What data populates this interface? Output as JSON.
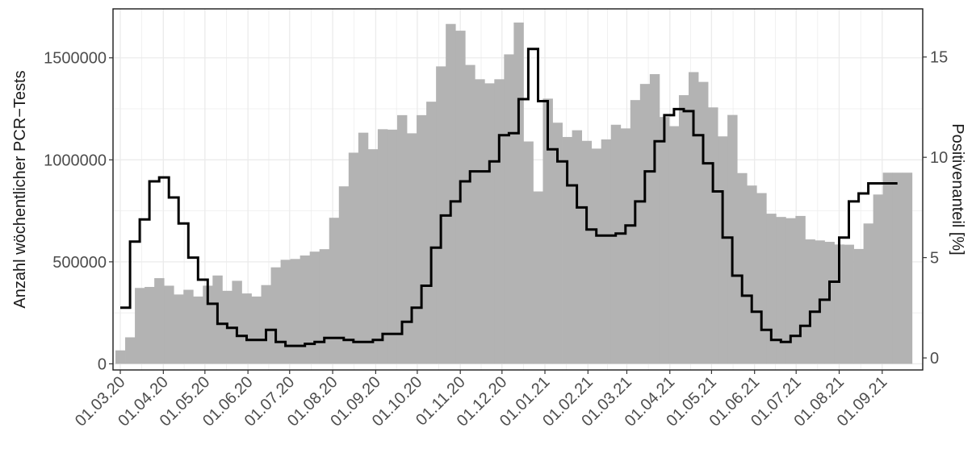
{
  "chart_data": {
    "type": "bar+line",
    "title": "",
    "ylabel": "Anzahl wöchentlicher PCR−Tests",
    "y2label": "Positivenanteil [%]",
    "ylim": [
      -30000,
      1740000
    ],
    "y2lim": [
      -0.6,
      17.4
    ],
    "x_range_weeks": [
      -0.75,
      82.6
    ],
    "grid": true,
    "colors": {
      "bars": "#b3b3b3",
      "line": "#000000",
      "grid": "#ebebeb",
      "panel_border": "#1a1a1a"
    },
    "x_tick_labels": [
      "01.03.20",
      "01.04.20",
      "01.05.20",
      "01.06.20",
      "01.07.20",
      "01.08.20",
      "01.09.20",
      "01.10.20",
      "01.11.20",
      "01.12.20",
      "01.01.21",
      "01.02.21",
      "01.03.21",
      "01.04.21",
      "01.05.21",
      "01.06.21",
      "01.07.21",
      "01.08.21",
      "01.09.21"
    ],
    "x_tick_weeks": [
      0,
      4.43,
      8.71,
      13.14,
      17.43,
      21.86,
      26.29,
      30.57,
      35.0,
      39.29,
      43.71,
      48.14,
      52.14,
      56.57,
      60.86,
      65.29,
      69.57,
      74.0,
      78.43
    ],
    "y_ticks": [
      0,
      500000,
      1000000,
      1500000
    ],
    "y_tick_labels": [
      "0",
      "500000",
      "1000000",
      "1500000"
    ],
    "y2_ticks": [
      0,
      5,
      10,
      15
    ],
    "y2_tick_labels": [
      "0",
      "5",
      "10",
      "15"
    ],
    "series": [
      {
        "name": "Anzahl wöchentlicher PCR−Tests",
        "kind": "bar",
        "values": [
          66000,
          130000,
          372000,
          377000,
          420000,
          383000,
          340000,
          363000,
          330000,
          383000,
          433000,
          358000,
          407000,
          345000,
          330000,
          386000,
          473000,
          510000,
          514000,
          531000,
          550000,
          562000,
          716000,
          870000,
          1035000,
          1133000,
          1052000,
          1150000,
          1148000,
          1219000,
          1130000,
          1219000,
          1285000,
          1458000,
          1666000,
          1633000,
          1465000,
          1395000,
          1375000,
          1395000,
          1517000,
          1673000,
          1090000,
          845000,
          1300000,
          1182000,
          1112000,
          1145000,
          1093000,
          1055000,
          1100000,
          1172000,
          1154000,
          1293000,
          1372000,
          1420000,
          1210000,
          1165000,
          1317000,
          1430000,
          1382000,
          1257000,
          1115000,
          1220000,
          935000,
          874000,
          837000,
          736000,
          720000,
          714000,
          725000,
          610000,
          605000,
          598000,
          585000,
          584000,
          563000,
          688000,
          830000,
          937000,
          937000,
          937000
        ]
      },
      {
        "name": "Positivenanteil [%]",
        "kind": "step",
        "values": [
          2.5,
          5.8,
          6.9,
          8.8,
          9.0,
          8.0,
          6.7,
          5.0,
          3.9,
          2.7,
          1.7,
          1.5,
          1.1,
          0.9,
          0.9,
          1.4,
          0.8,
          0.6,
          0.6,
          0.7,
          0.8,
          1.0,
          1.0,
          0.9,
          0.8,
          0.8,
          0.9,
          1.2,
          1.2,
          1.8,
          2.5,
          3.6,
          5.5,
          7.1,
          7.8,
          8.8,
          9.3,
          9.3,
          9.8,
          11.1,
          11.2,
          12.9,
          15.4,
          12.8,
          10.4,
          9.8,
          8.6,
          7.5,
          6.4,
          6.1,
          6.1,
          6.2,
          6.6,
          7.8,
          9.3,
          10.8,
          12.1,
          12.4,
          12.3,
          11.1,
          9.7,
          8.3,
          6.0,
          4.1,
          3.1,
          2.3,
          1.4,
          0.9,
          0.8,
          1.1,
          1.6,
          2.3,
          2.9,
          3.8,
          6.0,
          7.8,
          8.2,
          8.7,
          8.7,
          8.7
        ]
      }
    ]
  }
}
